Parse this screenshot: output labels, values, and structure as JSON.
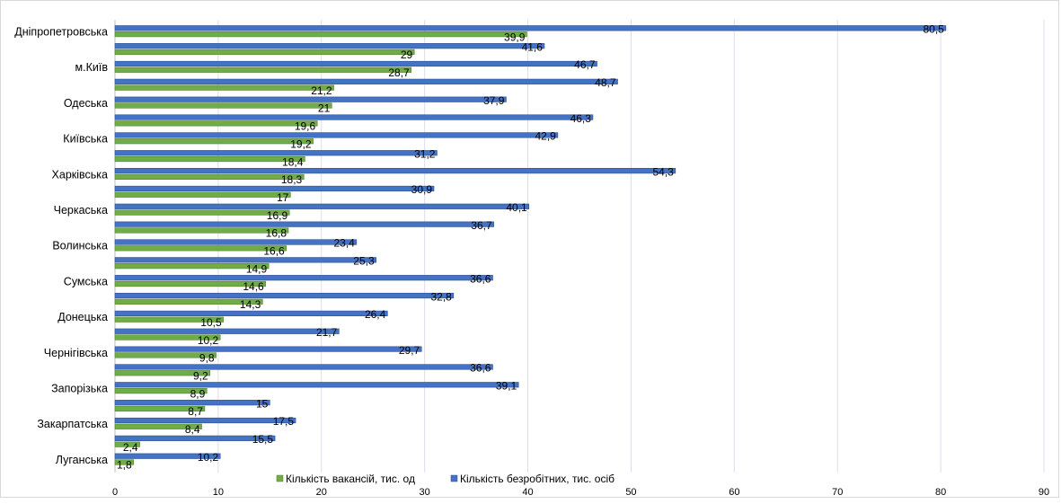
{
  "colors": {
    "vacancies": "#70ad47",
    "vacancies_edge": "#548235",
    "unemployed": "#4472c4",
    "unemployed_edge": "#2f528f",
    "grid": "#dcdcf0",
    "text": "#000000"
  },
  "chart_data": {
    "type": "bar",
    "orientation": "horizontal",
    "title": "",
    "xlabel": "",
    "ylabel": "",
    "xlim": [
      0,
      90
    ],
    "x_ticks": [
      0,
      10,
      20,
      30,
      40,
      50,
      60,
      70,
      80,
      90
    ],
    "grid": "vertical",
    "legend_position": "bottom",
    "category_labels": [
      "Дніпропетровська",
      "м.Київ",
      "Одеська",
      "Київська",
      "Харківська",
      "Черкаська",
      "Волинська",
      "Сумська",
      "Донецька",
      "Чернігівська",
      "Запорізька",
      "Закарпатська",
      "Луганська"
    ],
    "labeled_slot_indices": [
      0,
      2,
      4,
      6,
      8,
      10,
      12,
      14,
      16,
      18,
      20,
      22,
      24
    ],
    "slots": 25,
    "series": [
      {
        "name": "Кількість вакансій, тис. од",
        "values": [
          39.9,
          29,
          28.7,
          21.2,
          21,
          19.6,
          19.2,
          18.4,
          18.3,
          17,
          16.9,
          16.8,
          16.6,
          14.9,
          14.6,
          14.3,
          10.5,
          10.2,
          9.8,
          9.2,
          8.9,
          8.7,
          8.4,
          2.4,
          1.8
        ],
        "labels": [
          "39,9",
          "29",
          "28,7",
          "21,2",
          "21",
          "19,6",
          "19,2",
          "18,4",
          "18,3",
          "17",
          "16,9",
          "16,8",
          "16,6",
          "14,9",
          "14,6",
          "14,3",
          "10,5",
          "10,2",
          "9,8",
          "9,2",
          "8,9",
          "8,7",
          "8,4",
          "2,4",
          "1,8"
        ]
      },
      {
        "name": "Кількість безробітних, тис. осіб",
        "values": [
          80.5,
          41.6,
          46.7,
          48.7,
          37.9,
          46.3,
          42.9,
          31.2,
          54.3,
          30.9,
          40.1,
          36.7,
          23.4,
          25.3,
          36.6,
          32.8,
          26.4,
          21.7,
          29.7,
          36.6,
          39.1,
          15,
          17.5,
          15.5,
          10.2
        ],
        "labels": [
          "80,5",
          "41,6",
          "46,7",
          "48,7",
          "37,9",
          "46,3",
          "42,9",
          "31,2",
          "54,3",
          "30,9",
          "40,1",
          "36,7",
          "23,4",
          "25,3",
          "36,6",
          "32,8",
          "26,4",
          "21,7",
          "29,7",
          "36,6",
          "39,1",
          "15",
          "17,5",
          "15,5",
          "10,2"
        ]
      }
    ]
  }
}
